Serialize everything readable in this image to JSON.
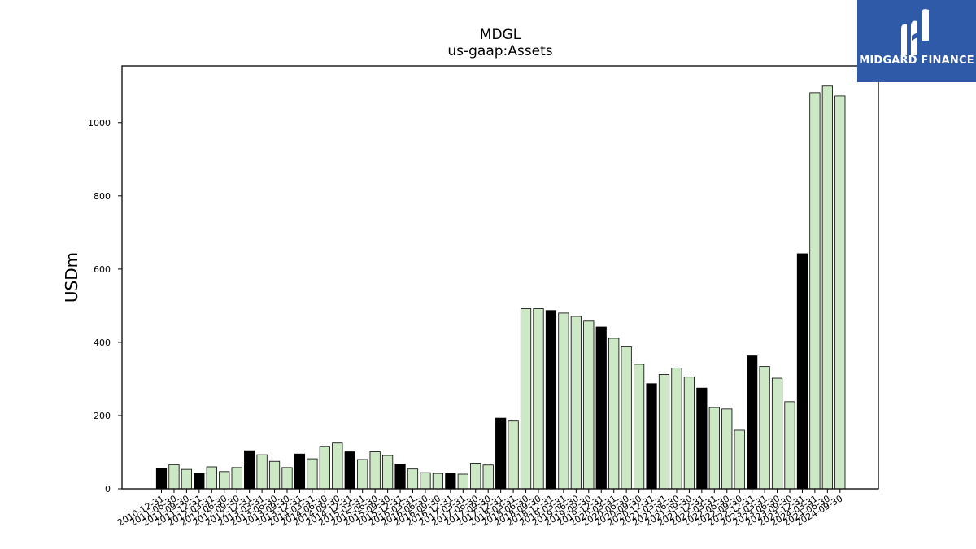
{
  "brand": {
    "name": "MIDGARD FINANCE",
    "background_color": "#2e5aa8"
  },
  "colors": {
    "highlight_bar": "#000000",
    "normal_bar": "#cce8c4",
    "bar_edge": "#000000"
  },
  "chart_data": {
    "type": "bar",
    "title": "MDGL",
    "subtitle": "us-gaap:Assets",
    "xlabel": "",
    "ylabel": "USDm",
    "ylim": [
      0,
      1155
    ],
    "yticks": [
      0,
      200,
      400,
      600,
      800,
      1000
    ],
    "grid": false,
    "categories": [
      "2010-12-31",
      "2011-06-30",
      "2011-09-30",
      "2011-12-31",
      "2012-03-31",
      "2012-06-30",
      "2012-09-30",
      "2012-12-31",
      "2013-03-31",
      "2013-06-30",
      "2013-09-30",
      "2013-12-31",
      "2014-03-31",
      "2014-06-30",
      "2014-09-30",
      "2014-12-31",
      "2015-03-31",
      "2015-06-30",
      "2015-09-30",
      "2015-12-31",
      "2016-03-31",
      "2016-06-30",
      "2016-09-30",
      "2016-12-31",
      "2017-03-31",
      "2017-06-30",
      "2017-09-30",
      "2017-12-31",
      "2018-03-31",
      "2018-06-30",
      "2018-09-30",
      "2018-12-31",
      "2019-03-31",
      "2019-06-30",
      "2019-09-30",
      "2019-12-31",
      "2020-03-31",
      "2020-06-30",
      "2020-09-30",
      "2020-12-31",
      "2021-03-31",
      "2021-06-30",
      "2021-09-30",
      "2021-12-31",
      "2022-03-31",
      "2022-06-30",
      "2022-09-30",
      "2022-12-31",
      "2023-03-31",
      "2023-06-30",
      "2023-09-30",
      "2023-12-31",
      "2024-03-31",
      "2024-06-30",
      "2024-09-30"
    ],
    "values": [
      55,
      66,
      53,
      42,
      60,
      47,
      58,
      104,
      93,
      75,
      58,
      95,
      82,
      116,
      125,
      101,
      80,
      101,
      91,
      68,
      54,
      44,
      42,
      42,
      40,
      70,
      65,
      193,
      185,
      492,
      492,
      487,
      480,
      471,
      458,
      442,
      411,
      388,
      340,
      287,
      312,
      330,
      305,
      275,
      222,
      218,
      160,
      363,
      334,
      302,
      238,
      642,
      1082,
      1100,
      1073
    ],
    "highlighted": [
      0,
      3,
      7,
      11,
      15,
      19,
      23,
      27,
      31,
      35,
      39,
      43,
      47,
      51
    ]
  }
}
